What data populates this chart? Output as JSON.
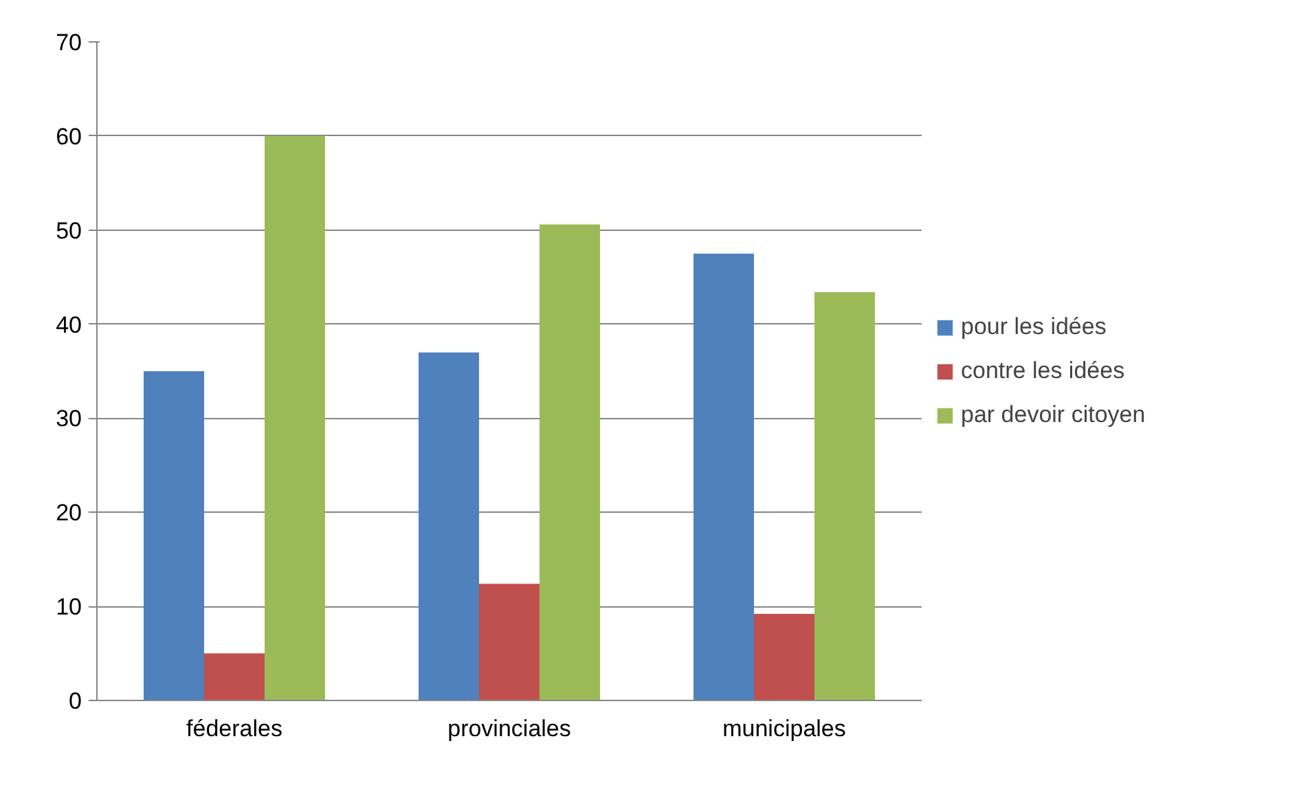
{
  "chart_data": {
    "type": "bar",
    "categories": [
      "féderales",
      "provinciales",
      "municipales"
    ],
    "series": [
      {
        "name": "pour les idées",
        "color": "#4f81bd",
        "values": [
          35,
          37,
          47.5
        ]
      },
      {
        "name": "contre les idées",
        "color": "#c0504d",
        "values": [
          5,
          12.4,
          9.2
        ]
      },
      {
        "name": "par devoir citoyen",
        "color": "#9bbb59",
        "values": [
          60,
          50.6,
          43.4
        ]
      }
    ],
    "ylim": [
      0,
      70
    ],
    "yticks": [
      0,
      10,
      20,
      30,
      40,
      50,
      60,
      70
    ],
    "grid": "y",
    "legend": "right"
  }
}
